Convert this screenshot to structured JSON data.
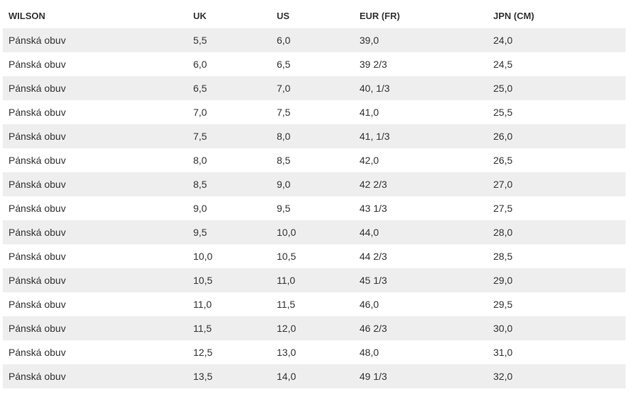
{
  "table": {
    "header": [
      "WILSON",
      "UK",
      "US",
      "EUR (FR)",
      "JPN (CM)"
    ],
    "rows": [
      [
        "Pánská obuv",
        "5,5",
        "6,0",
        "39,0",
        "24,0"
      ],
      [
        "Pánská obuv",
        "6,0",
        "6,5",
        "39 2/3",
        "24,5"
      ],
      [
        "Pánská obuv",
        "6,5",
        "7,0",
        "40, 1/3",
        "25,0"
      ],
      [
        "Pánská obuv",
        "7,0",
        "7,5",
        "41,0",
        "25,5"
      ],
      [
        "Pánská obuv",
        "7,5",
        "8,0",
        "41, 1/3",
        "26,0"
      ],
      [
        "Pánská obuv",
        "8,0",
        "8,5",
        "42,0",
        "26,5"
      ],
      [
        "Pánská obuv",
        "8,5",
        "9,0",
        "42 2/3",
        "27,0"
      ],
      [
        "Pánská obuv",
        "9,0",
        "9,5",
        "43 1/3",
        "27,5"
      ],
      [
        "Pánská obuv",
        "9,5",
        "10,0",
        "44,0",
        "28,0"
      ],
      [
        "Pánská obuv",
        "10,0",
        "10,5",
        "44 2/3",
        "28,5"
      ],
      [
        "Pánská obuv",
        "10,5",
        "11,0",
        "45 1/3",
        "29,0"
      ],
      [
        "Pánská obuv",
        "11,0",
        "11,5",
        "46,0",
        "29,5"
      ],
      [
        "Pánská obuv",
        "11,5",
        "12,0",
        "46 2/3",
        "30,0"
      ],
      [
        "Pánská obuv",
        "12,5",
        "13,0",
        "48,0",
        "31,0"
      ],
      [
        "Pánská obuv",
        "13,5",
        "14,0",
        "49 1/3",
        "32,0"
      ]
    ]
  }
}
